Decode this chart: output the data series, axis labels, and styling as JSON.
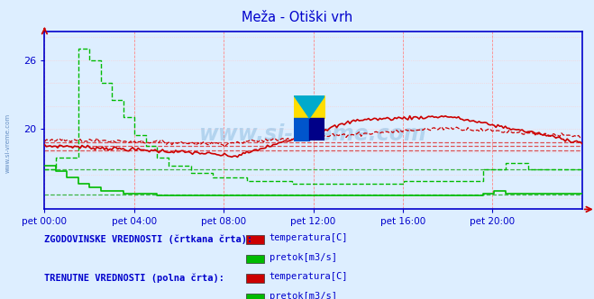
{
  "title": "Meža - Otiški vrh",
  "title_color": "#0000cc",
  "bg_color": "#ddeeff",
  "plot_bg_color": "#ddeeff",
  "xlabel_ticks": [
    "pet 00:00",
    "pet 04:00",
    "pet 08:00",
    "pet 12:00",
    "pet 16:00",
    "pet 20:00"
  ],
  "ymin": 13.0,
  "ymax": 28.5,
  "ytick_positions": [
    20,
    26
  ],
  "ytick_labels": [
    "20",
    "26"
  ],
  "n_points": 288,
  "ref_lines_red": [
    18.1,
    18.5,
    18.8
  ],
  "ref_line_green_1": 16.5,
  "ref_line_green_2": 14.3,
  "watermark": "www.si-vreme.com",
  "legend_hist_label": "ZGODOVINSKE VREDNOSTI (črtkana črta):",
  "legend_curr_label": "TRENUTNE VREDNOSTI (polna črta):",
  "legend_temp_label": "temperatura[C]",
  "legend_pretok_label": "pretok[m3/s]",
  "red_color": "#cc0000",
  "green_color": "#00bb00",
  "axis_color": "#0000cc",
  "grid_color_v": "#ff8888",
  "grid_color_h": "#ffcccc"
}
